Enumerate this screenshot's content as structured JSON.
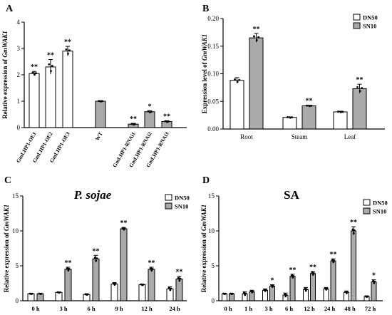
{
  "chart_data": [
    {
      "panel": "A",
      "type": "bar",
      "title": "",
      "ylabel_prefix": "Relative expression of ",
      "ylabel_gene": "GmWAK1",
      "xlabel": "",
      "ylim": [
        0,
        4
      ],
      "yticks": [
        "0",
        "1",
        "2",
        "3",
        "4"
      ],
      "categories": [
        "GmLHP1-OE1",
        "GmLHP1-OE2",
        "GmLHP1-OE3",
        "WT",
        "GmLHP1-RNAi1",
        "GmLHP1-RNAi2",
        "GmLHP1-RNAi3"
      ],
      "values": [
        2.05,
        2.3,
        2.9,
        1.0,
        0.13,
        0.6,
        0.23
      ],
      "errors": [
        0.08,
        0.28,
        0.18,
        0.02,
        0.03,
        0.04,
        0.03
      ],
      "colors": [
        "#ffffff",
        "#ffffff",
        "#ffffff",
        "#aaaaaa",
        "#aaaaaa",
        "#aaaaaa",
        "#aaaaaa"
      ],
      "significance": [
        "**",
        "**",
        "**",
        "",
        "**",
        "*",
        "**"
      ]
    },
    {
      "panel": "B",
      "type": "bar",
      "title": "",
      "ylabel_prefix": "Expression level of ",
      "ylabel_gene": "GmWAK1",
      "ylim": [
        0,
        0.2
      ],
      "yticks": [
        "0.00",
        "0.05",
        "0.10",
        "0.15",
        "0.20"
      ],
      "categories": [
        "Root",
        "Steam",
        "Leaf"
      ],
      "series": [
        {
          "name": "DN50",
          "color": "#ffffff",
          "values": [
            0.088,
            0.021,
            0.031
          ],
          "errors": [
            0.005,
            0.001,
            0.0012
          ],
          "significance": [
            "",
            "",
            ""
          ]
        },
        {
          "name": "SN10",
          "color": "#aaaaaa",
          "values": [
            0.165,
            0.042,
            0.073
          ],
          "errors": [
            0.008,
            0.001,
            0.008
          ],
          "significance": [
            "**",
            "**",
            "**"
          ]
        }
      ],
      "legend_position": "top-right"
    },
    {
      "panel": "C",
      "type": "bar",
      "title": "P. sojae",
      "ylabel_prefix": "Relative expression of ",
      "ylabel_gene": "GmWAK1",
      "ylim": [
        0,
        15
      ],
      "yticks": [
        "0",
        "5",
        "10",
        "15"
      ],
      "categories": [
        "0 h",
        "3 h",
        "6 h",
        "9 h",
        "12 h",
        "24 h"
      ],
      "series": [
        {
          "name": "DN50",
          "color": "#ffffff",
          "values": [
            1.0,
            1.2,
            0.9,
            2.4,
            2.3,
            1.7
          ],
          "errors": [
            0.05,
            0.05,
            0.1,
            0.2,
            0.1,
            0.3
          ],
          "significance": [
            "",
            "",
            "",
            "",
            "",
            ""
          ]
        },
        {
          "name": "SN10",
          "color": "#aaaaaa",
          "values": [
            1.0,
            4.5,
            6.0,
            10.3,
            4.5,
            3.1
          ],
          "errors": [
            0.05,
            0.3,
            0.5,
            0.2,
            0.3,
            0.4
          ],
          "significance": [
            "",
            "**",
            "**",
            "**",
            "**",
            "**"
          ]
        }
      ],
      "legend_position": "top-right"
    },
    {
      "panel": "D",
      "type": "bar",
      "title": "SA",
      "ylabel_prefix": "Relative expression of ",
      "ylabel_gene": "GmWAK1",
      "ylim": [
        0,
        15
      ],
      "yticks": [
        "0",
        "5",
        "10",
        "15"
      ],
      "categories": [
        "0 h",
        "1 h",
        "3 h",
        "6 h",
        "12 h",
        "24 h",
        "48 h",
        "72 h"
      ],
      "series": [
        {
          "name": "DN50",
          "color": "#ffffff",
          "values": [
            1.0,
            1.0,
            1.5,
            0.8,
            1.6,
            1.7,
            1.2,
            0.6
          ],
          "errors": [
            0.05,
            0.3,
            0.2,
            0.3,
            0.3,
            0.2,
            0.2,
            0.1
          ],
          "significance": [
            "",
            "",
            "",
            "",
            "",
            "",
            "",
            ""
          ]
        },
        {
          "name": "SN10",
          "color": "#aaaaaa",
          "values": [
            1.0,
            1.3,
            2.1,
            3.5,
            3.9,
            5.7,
            10.0,
            2.7
          ],
          "errors": [
            0.05,
            0.2,
            0.2,
            0.3,
            0.3,
            0.3,
            0.6,
            0.3
          ],
          "significance": [
            "",
            "",
            "*",
            "**",
            "**",
            "**",
            "**",
            "*"
          ]
        }
      ],
      "legend_position": "top-right"
    }
  ]
}
